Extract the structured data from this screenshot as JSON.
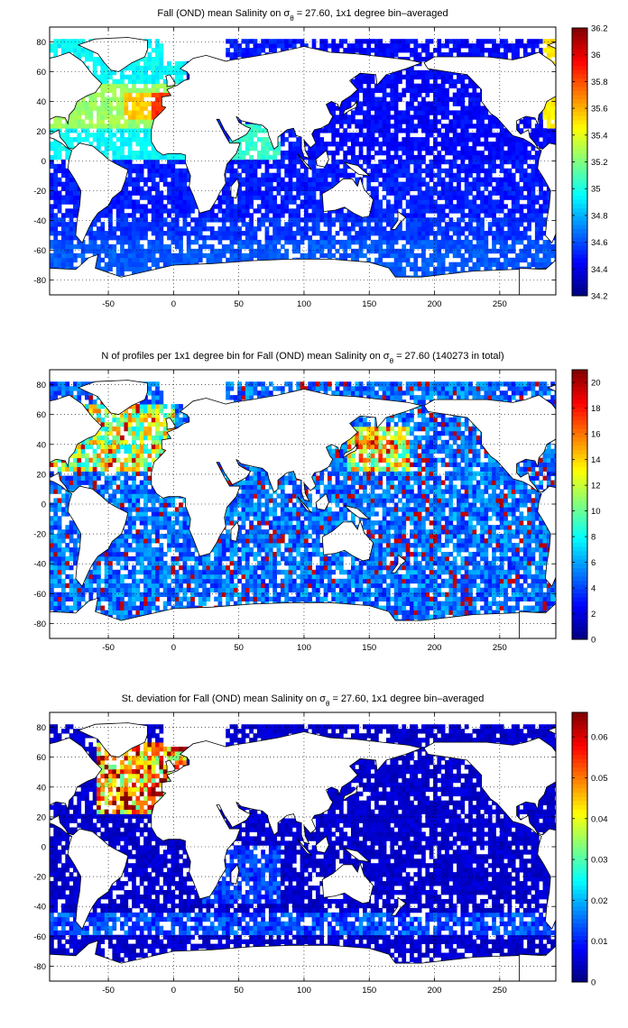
{
  "chart_data": [
    {
      "type": "heatmap",
      "title_pre": "Fall (OND) mean Salinity on ",
      "title_post": " = 27.60, 1x1 degree bin–averaged",
      "sigma_symbol": "σ",
      "sigma_sub": "θ",
      "xlim": [
        -95,
        293
      ],
      "ylim": [
        -90,
        90
      ],
      "x_ticks": [
        -50,
        0,
        50,
        100,
        150,
        200,
        250
      ],
      "y_ticks": [
        80,
        60,
        40,
        20,
        0,
        -20,
        -40,
        -60,
        -80
      ],
      "grid": true,
      "colorbar": {
        "min": 34.2,
        "max": 36.2,
        "ticks": [
          34.2,
          34.4,
          34.6,
          34.8,
          35,
          35.2,
          35.4,
          35.6,
          35.8,
          36,
          36.2
        ]
      },
      "field": "salinity"
    },
    {
      "type": "heatmap",
      "title_pre": "N of profiles per 1x1 degree bin for Fall (OND) mean Salinity on ",
      "title_post": " = 27.60 (140273 in total)",
      "sigma_symbol": "σ",
      "sigma_sub": "θ",
      "xlim": [
        -95,
        293
      ],
      "ylim": [
        -90,
        90
      ],
      "x_ticks": [
        -50,
        0,
        50,
        100,
        150,
        200,
        250
      ],
      "y_ticks": [
        80,
        60,
        40,
        20,
        0,
        -20,
        -40,
        -60,
        -80
      ],
      "grid": true,
      "colorbar": {
        "min": 0,
        "max": 21,
        "ticks": [
          0,
          2,
          4,
          6,
          8,
          10,
          12,
          14,
          16,
          18,
          20
        ]
      },
      "field": "count",
      "total_profiles": 140273
    },
    {
      "type": "heatmap",
      "title_pre": "St. deviation for Fall (OND) mean Salinity on ",
      "title_post": " = 27.60, 1x1 degree bin–averaged",
      "sigma_symbol": "σ",
      "sigma_sub": "θ",
      "xlim": [
        -95,
        293
      ],
      "ylim": [
        -90,
        90
      ],
      "x_ticks": [
        -50,
        0,
        50,
        100,
        150,
        200,
        250
      ],
      "y_ticks": [
        80,
        60,
        40,
        20,
        0,
        -20,
        -40,
        -60,
        -80
      ],
      "grid": true,
      "colorbar": {
        "min": 0,
        "max": 0.066,
        "ticks": [
          0,
          0.01,
          0.02,
          0.03,
          0.04,
          0.05,
          0.06
        ]
      },
      "field": "stdev"
    }
  ],
  "colormap": "jet",
  "colors": {
    "land": "#ffffff",
    "coast": "#000000",
    "grid": "#000000",
    "frame": "#000000"
  }
}
